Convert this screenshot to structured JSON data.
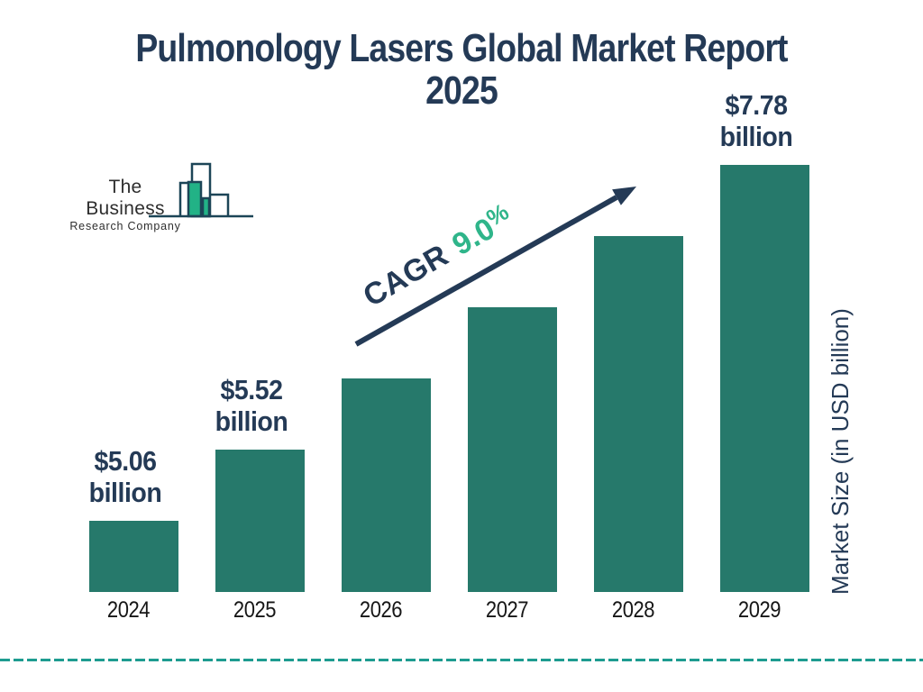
{
  "title": {
    "line1": "Pulmonology Lasers Global Market Report",
    "line2": "2025"
  },
  "logo": {
    "line1": "The Business",
    "line2": "Research Company"
  },
  "cagr": {
    "label": "CAGR",
    "value": "9.0",
    "suffix": "%"
  },
  "y_axis_label": "Market Size (in USD billion)",
  "colors": {
    "navy": "#243A56",
    "bar_teal": "#26796B",
    "green_accent": "#2FB58A",
    "dashed_teal": "#1E9C90",
    "logo_outline_navy": "#1C4557",
    "logo_green": "#22B286",
    "year_label": "#161616"
  },
  "chart_data": {
    "type": "bar",
    "title": "Pulmonology Lasers Global Market Report 2025",
    "ylabel": "Market Size (in USD billion)",
    "cagr_percent": 9.0,
    "legend": "none",
    "grid": false,
    "categories": [
      "2024",
      "2025",
      "2026",
      "2027",
      "2028",
      "2029"
    ],
    "values": [
      5.06,
      5.52,
      6.01,
      6.55,
      7.14,
      7.78
    ],
    "labeled": [
      true,
      true,
      false,
      false,
      false,
      true
    ],
    "bars": [
      {
        "year": "2024",
        "value": 5.06,
        "label_amount": "$5.06",
        "label_unit": "billion"
      },
      {
        "year": "2025",
        "value": 5.52,
        "label_amount": "$5.52",
        "label_unit": "billion"
      },
      {
        "year": "2026",
        "value": 6.01,
        "label_amount": "",
        "label_unit": ""
      },
      {
        "year": "2027",
        "value": 6.55,
        "label_amount": "",
        "label_unit": ""
      },
      {
        "year": "2028",
        "value": 7.14,
        "label_amount": "",
        "label_unit": ""
      },
      {
        "year": "2029",
        "value": 7.78,
        "label_amount": "$7.78",
        "label_unit": "billion"
      }
    ]
  }
}
